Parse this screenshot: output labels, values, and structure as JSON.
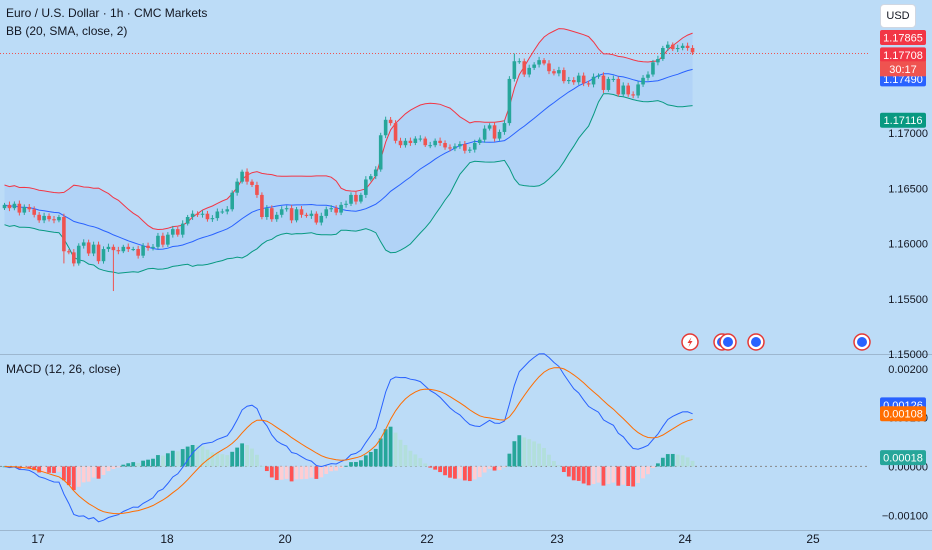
{
  "header": {
    "title": "Euro / U.S. Dollar · 1h · CMC Markets",
    "bb_label": "BB (20, SMA, close, 2)",
    "macd_label": "MACD (12, 26, close)",
    "currency_button": "USD"
  },
  "colors": {
    "background": "#bcdcf7",
    "up": "#26a69a",
    "down": "#ef5350",
    "basis": "#2962ff",
    "upper_band": "#f23645",
    "lower_band": "#089981",
    "macd_line": "#2962ff",
    "signal_line": "#ff6d00",
    "hist_pos_strong": "#26a69a",
    "hist_pos_weak": "#b2dfdb",
    "hist_neg_strong": "#ff5252",
    "hist_neg_weak": "#ffcdd2"
  },
  "chart_data": [
    {
      "type": "candlestick",
      "title": "Euro / U.S. Dollar · 1h · CMC Markets",
      "ylim": [
        1.15,
        1.1815
      ],
      "y_ticks": [
        "1.17000",
        "1.16500",
        "1.16000",
        "1.15500",
        "1.15000"
      ],
      "y_tick_values": [
        1.17,
        1.165,
        1.16,
        1.155,
        1.15
      ],
      "x_tick_labels": [
        "17",
        "18",
        "20",
        "22",
        "23",
        "24",
        "25"
      ],
      "ohlc_close": [
        1.1635,
        1.1632,
        1.1636,
        1.1628,
        1.1633,
        1.1631,
        1.1626,
        1.1621,
        1.1625,
        1.1622,
        1.1621,
        1.1624,
        1.1593,
        1.1592,
        1.1582,
        1.1598,
        1.1601,
        1.1591,
        1.1599,
        1.1584,
        1.1595,
        1.1597,
        1.1594,
        1.1593,
        1.1597,
        1.1595,
        1.1595,
        1.1589,
        1.1598,
        1.1596,
        1.1597,
        1.1607,
        1.1599,
        1.1608,
        1.1613,
        1.1608,
        1.1618,
        1.1624,
        1.1627,
        1.1626,
        1.1627,
        1.1622,
        1.1623,
        1.1629,
        1.1629,
        1.1631,
        1.1646,
        1.1656,
        1.1665,
        1.1656,
        1.1653,
        1.1644,
        1.1624,
        1.1632,
        1.1622,
        1.1626,
        1.1631,
        1.1632,
        1.1621,
        1.1631,
        1.1626,
        1.1625,
        1.1627,
        1.1619,
        1.1625,
        1.1631,
        1.1632,
        1.1628,
        1.1635,
        1.1636,
        1.1644,
        1.1638,
        1.1644,
        1.1658,
        1.1661,
        1.1667,
        1.1698,
        1.1712,
        1.1709,
        1.1693,
        1.1689,
        1.1693,
        1.1691,
        1.1695,
        1.1695,
        1.1689,
        1.1689,
        1.1693,
        1.1691,
        1.1687,
        1.1686,
        1.1688,
        1.169,
        1.1684,
        1.1685,
        1.1691,
        1.1694,
        1.1704,
        1.1707,
        1.1695,
        1.1701,
        1.1709,
        1.1749,
        1.1765,
        1.1765,
        1.1753,
        1.1759,
        1.1762,
        1.1766,
        1.1763,
        1.1756,
        1.1754,
        1.1757,
        1.1747,
        1.1748,
        1.1746,
        1.1752,
        1.1745,
        1.1744,
        1.1751,
        1.1752,
        1.1739,
        1.1749,
        1.1749,
        1.1735,
        1.1743,
        1.1735,
        1.1734,
        1.1744,
        1.175,
        1.1753,
        1.1764,
        1.1767,
        1.1777,
        1.178,
        1.1776,
        1.1777,
        1.1779,
        1.1777,
        1.1773
      ],
      "last_price": "1.17708",
      "countdown": "30:17",
      "price_labels": [
        {
          "text": "1.17865",
          "value": 1.17865,
          "color": "#f23645"
        },
        {
          "text": "1.17708",
          "value": 1.17708,
          "color": "#f23645"
        },
        {
          "text": "1.17490",
          "value": 1.1749,
          "color": "#2962ff"
        },
        {
          "text": "1.17116",
          "value": 1.17116,
          "color": "#089981"
        }
      ],
      "series": [
        {
          "name": "BB Upper",
          "color": "#f23645"
        },
        {
          "name": "BB Basis",
          "color": "#2962ff"
        },
        {
          "name": "BB Lower",
          "color": "#089981"
        }
      ]
    },
    {
      "type": "macd",
      "title": "MACD (12, 26, close)",
      "ylim": [
        -0.00122,
        0.00218
      ],
      "y_ticks": [
        "0.00200",
        "0.00100",
        "0.00000",
        "−0.00100"
      ],
      "y_tick_values": [
        0.002,
        0.001,
        0.0,
        -0.001
      ],
      "price_labels": [
        {
          "text": "0.00126",
          "value": 0.00126,
          "color": "#2962ff"
        },
        {
          "text": "0.00108",
          "value": 0.00108,
          "color": "#ff6d00"
        },
        {
          "text": "0.00018",
          "value": 0.00018,
          "color": "#26a69a"
        }
      ],
      "series": [
        {
          "name": "MACD",
          "color": "#2962ff"
        },
        {
          "name": "Signal",
          "color": "#ff6d00"
        },
        {
          "name": "Histogram"
        }
      ]
    }
  ],
  "event_markers": [
    "flash-icon",
    "globe-icon",
    "globe-icon",
    "globe-icon",
    "globe-icon"
  ]
}
